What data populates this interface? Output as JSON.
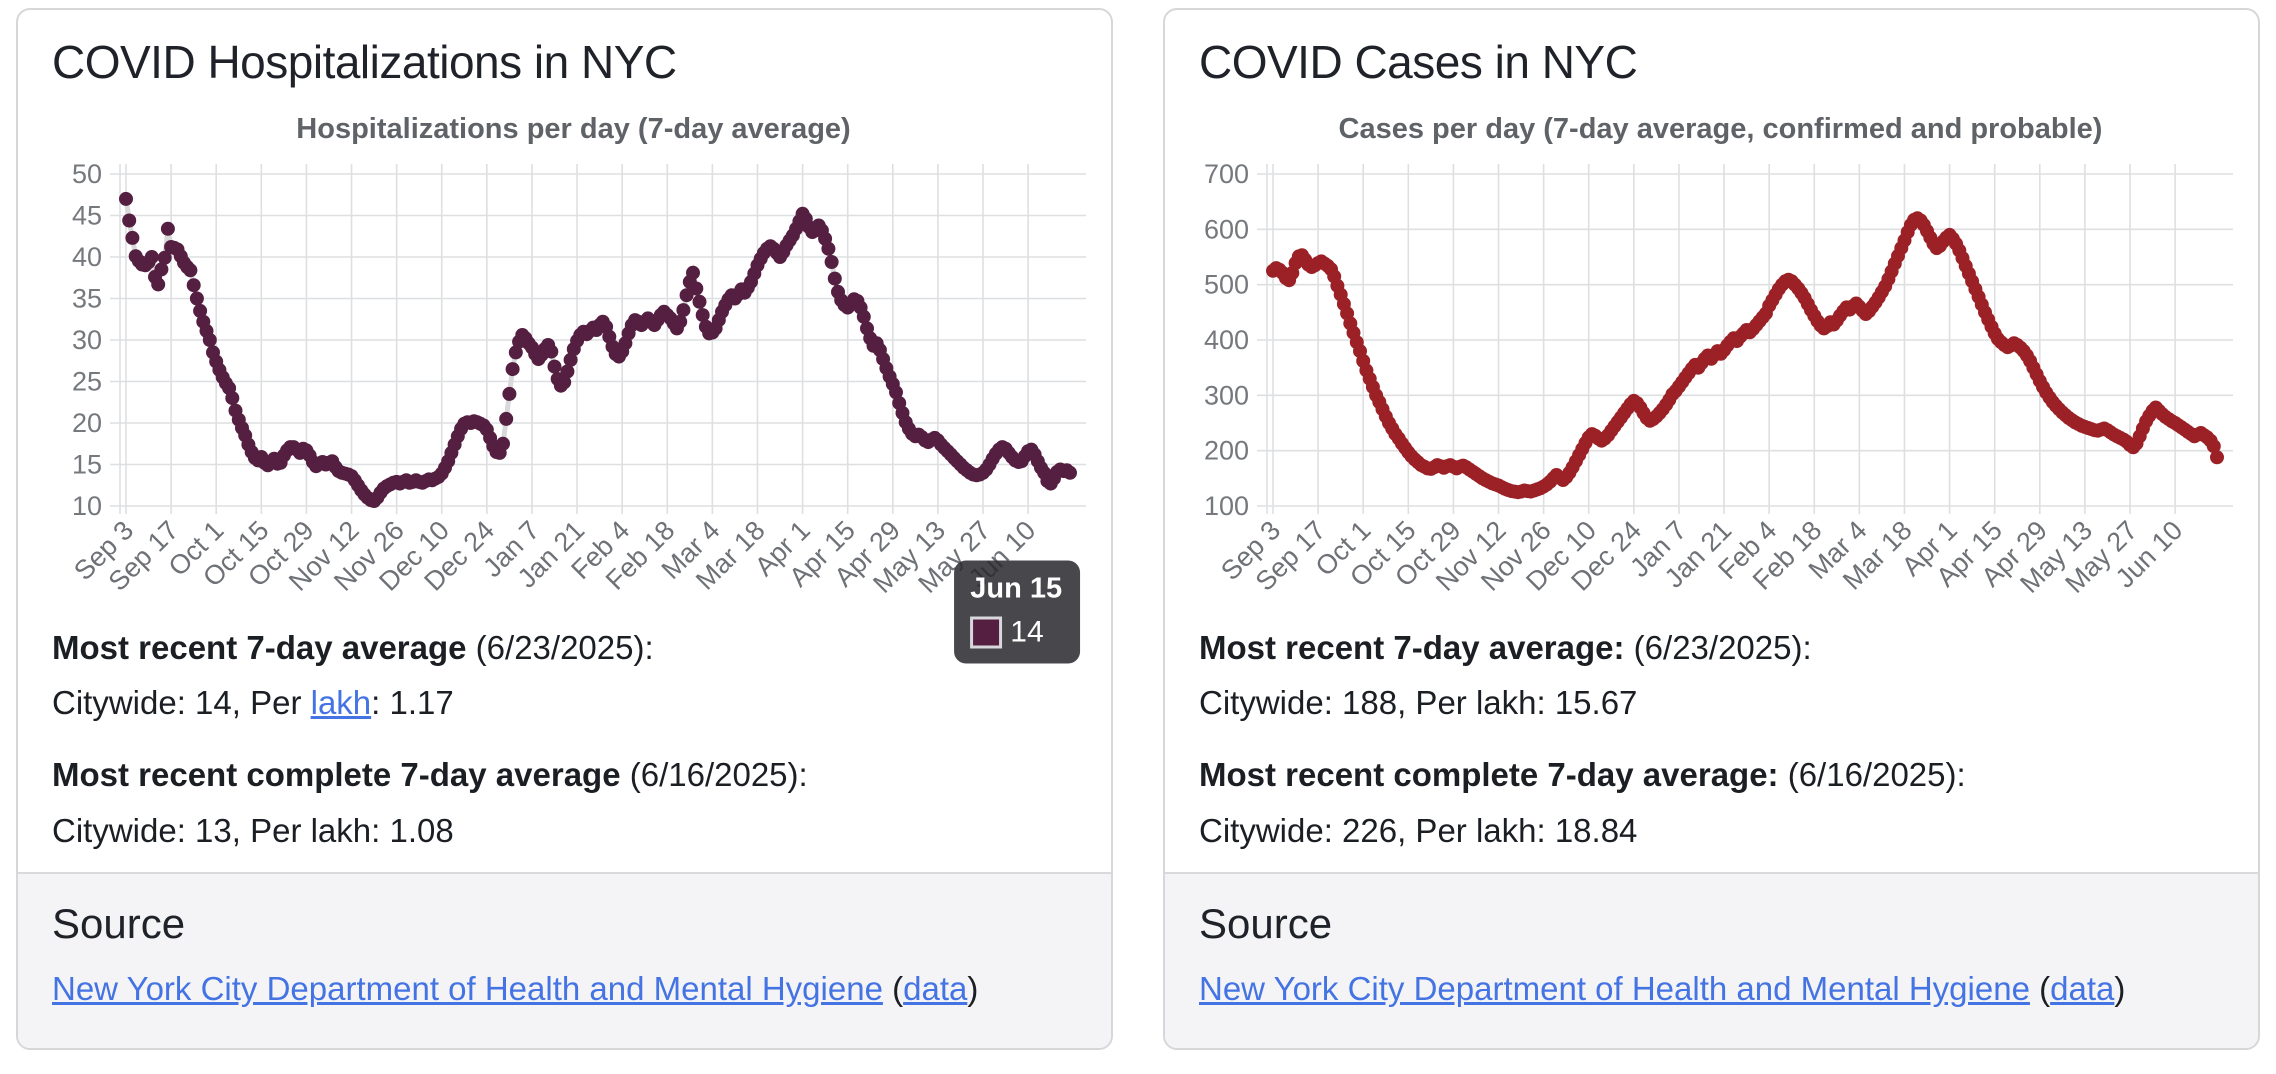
{
  "cards": [
    {
      "title": "COVID Hospitalizations in NYC",
      "chart_index": 0,
      "stat1": {
        "bold": "Most recent 7-day average",
        "rest": " (6/23/2025):",
        "pre": "Citywide: 14, Per ",
        "link": "lakh",
        "post": ": 1.17"
      },
      "stat2": {
        "bold": "Most recent complete 7-day average",
        "rest": " (6/16/2025):",
        "pre": "Citywide: 13, Per lakh: 1.08",
        "link": "",
        "post": ""
      },
      "source": {
        "heading": "Source",
        "link_text": "New York City Department of Health and Mental Hygiene",
        "sep": " (",
        "data_text": "data",
        "close": ")"
      }
    },
    {
      "title": "COVID Cases in NYC",
      "chart_index": 1,
      "stat1": {
        "bold": "Most recent 7-day average:",
        "rest": " (6/23/2025):",
        "pre": "Citywide: 188, Per lakh: 15.67",
        "link": "",
        "post": ""
      },
      "stat2": {
        "bold": "Most recent complete 7-day average:",
        "rest": " (6/16/2025):",
        "pre": "Citywide: 226, Per lakh: 18.84",
        "link": "",
        "post": ""
      },
      "source": {
        "heading": "Source",
        "link_text": "New York City Department of Health and Mental Hygiene",
        "sep": " (",
        "data_text": "data",
        "close": ")"
      }
    }
  ],
  "chart_data": [
    {
      "type": "scatter",
      "title": "Hospitalizations per day (7-day average)",
      "x_tick_days": [
        0,
        14,
        28,
        42,
        56,
        70,
        84,
        98,
        112,
        126,
        140,
        154,
        168,
        182,
        196,
        210,
        224,
        238,
        252,
        266,
        280
      ],
      "x_tick_labels": [
        "Sep 3",
        "Sep 17",
        "Oct 1",
        "Oct 15",
        "Oct 29",
        "Nov 12",
        "Nov 26",
        "Dec 10",
        "Dec 24",
        "Jan 7",
        "Jan 21",
        "Feb 4",
        "Feb 18",
        "Mar 4",
        "Mar 18",
        "Apr 1",
        "Apr 15",
        "Apr 29",
        "May 13",
        "May 27",
        "Jun 10"
      ],
      "yticks": [
        10,
        15,
        20,
        25,
        30,
        35,
        40,
        45,
        50
      ],
      "ylim": [
        10,
        50
      ],
      "grid": true,
      "legend": "none",
      "point_color": "#541f41",
      "line_color": "#d9d9db",
      "tooltip": {
        "day": 285,
        "value": 14,
        "label": "Jun 15",
        "value_label": "14"
      },
      "values": [
        47,
        44.4,
        42.3,
        40.1,
        39.5,
        39.1,
        39,
        39.4,
        40,
        37.6,
        36.7,
        38.5,
        39.9,
        43.4,
        41.2,
        41.1,
        40.9,
        40.1,
        39.3,
        38.8,
        38.4,
        36.6,
        35,
        33.5,
        32.2,
        31.1,
        30,
        28.5,
        27.4,
        26.4,
        25.5,
        24.8,
        24.2,
        23,
        21.5,
        20.4,
        19.4,
        18.5,
        17.4,
        16.5,
        15.8,
        15.5,
        15.9,
        15.2,
        14.9,
        15.3,
        15.7,
        15.1,
        15.2,
        16.1,
        16.7,
        17.1,
        17.1,
        16.8,
        16.4,
        16.9,
        16.7,
        16.1,
        15.3,
        14.8,
        15.1,
        15.3,
        15,
        15.2,
        15.4,
        14.7,
        14.2,
        14,
        13.9,
        13.8,
        13.6,
        13.1,
        12.5,
        11.9,
        11.4,
        11,
        10.7,
        10.6,
        11,
        11.6,
        12.1,
        12.4,
        12.6,
        12.8,
        12.9,
        12.7,
        12.9,
        13.1,
        12.8,
        12.9,
        13.1,
        12.9,
        12.8,
        13,
        13.2,
        13.1,
        13.3,
        13.5,
        13.9,
        14.6,
        15.4,
        16.4,
        17.4,
        18.4,
        19.3,
        19.9,
        20.1,
        20,
        20.2,
        20.1,
        19.9,
        19.7,
        19.2,
        18.2,
        17.2,
        16.5,
        16.4,
        17.5,
        20.5,
        23.5,
        26.5,
        28.5,
        29.8,
        30.6,
        30.2,
        29.6,
        29.1,
        28.3,
        27.7,
        28.2,
        28.9,
        29.4,
        28.6,
        26.8,
        25.3,
        24.5,
        24.9,
        26.2,
        27.6,
        28.9,
        29.9,
        30.6,
        31,
        30.7,
        31.1,
        31.5,
        31.2,
        31.8,
        32.2,
        31.6,
        30.4,
        29.2,
        28.3,
        28,
        28.6,
        29.6,
        30.8,
        31.8,
        32.4,
        32.2,
        31.8,
        32.2,
        32.6,
        32.2,
        31.8,
        32.4,
        33,
        33.4,
        33,
        32.6,
        32,
        31.4,
        32.2,
        33.6,
        35.4,
        37,
        38.1,
        36.2,
        34.6,
        33,
        31.6,
        30.8,
        30.9,
        31.4,
        32.4,
        33.4,
        34.2,
        34.9,
        35.4,
        35,
        35.5,
        36.1,
        35.7,
        36.3,
        37,
        38,
        39,
        39.8,
        40.5,
        41,
        41.3,
        41,
        40.5,
        40,
        40.6,
        41.4,
        42,
        42.6,
        43.4,
        44.3,
        45.2,
        44.6,
        43.6,
        43,
        43.2,
        43.8,
        43.2,
        42.2,
        41,
        39.4,
        37.4,
        35.8,
        34.8,
        34.2,
        33.9,
        34.3,
        34.9,
        34.7,
        33.9,
        32.8,
        31.4,
        30.2,
        29.3,
        29.6,
        28.8,
        27.7,
        26.6,
        25.6,
        24.7,
        23.7,
        22.4,
        21.2,
        20.1,
        19.3,
        18.7,
        18.4,
        18.6,
        18.3,
        17.9,
        17.7,
        18,
        18.2,
        17.9,
        17.4,
        17,
        16.6,
        16.2,
        15.8,
        15.4,
        15,
        14.6,
        14.3,
        14,
        13.8,
        13.7,
        13.8,
        14,
        14.4,
        15,
        15.7,
        16.3,
        16.8,
        17.1,
        16.9,
        16.4,
        15.9,
        15.5,
        15.3,
        15.4,
        16,
        16.6,
        16.8,
        16.2,
        15.4,
        14.6,
        14,
        13,
        12.7,
        13.3,
        14.1,
        14.4,
        14.2,
        14.3,
        14
      ]
    },
    {
      "type": "scatter",
      "title": "Cases per day (7-day average, confirmed and probable)",
      "x_tick_days": [
        0,
        14,
        28,
        42,
        56,
        70,
        84,
        98,
        112,
        126,
        140,
        154,
        168,
        182,
        196,
        210,
        224,
        238,
        252,
        266,
        280
      ],
      "x_tick_labels": [
        "Sep 3",
        "Sep 17",
        "Oct 1",
        "Oct 15",
        "Oct 29",
        "Nov 12",
        "Nov 26",
        "Dec 10",
        "Dec 24",
        "Jan 7",
        "Jan 21",
        "Feb 4",
        "Feb 18",
        "Mar 4",
        "Mar 18",
        "Apr 1",
        "Apr 15",
        "Apr 29",
        "May 13",
        "May 27",
        "Jun 10"
      ],
      "yticks": [
        100,
        200,
        300,
        400,
        500,
        600,
        700
      ],
      "ylim": [
        100,
        700
      ],
      "grid": true,
      "legend": "none",
      "point_color": "#9b2126",
      "line_color": "#d9d9db",
      "tooltip": null,
      "values": [
        525,
        530,
        527,
        521,
        512,
        508,
        521,
        539,
        551,
        553,
        545,
        536,
        532,
        535,
        539,
        542,
        538,
        534,
        528,
        515,
        498,
        482,
        465,
        448,
        430,
        413,
        396,
        380,
        362,
        345,
        330,
        315,
        300,
        288,
        275,
        262,
        250,
        240,
        230,
        222,
        213,
        205,
        197,
        190,
        184,
        179,
        174,
        171,
        168,
        167,
        170,
        174,
        172,
        169,
        172,
        174,
        171,
        168,
        171,
        173,
        170,
        166,
        162,
        158,
        154,
        150,
        147,
        144,
        141,
        139,
        137,
        134,
        131,
        129,
        127,
        126,
        125,
        126,
        128,
        127,
        126,
        128,
        130,
        132,
        135,
        139,
        144,
        150,
        156,
        151,
        147,
        152,
        160,
        170,
        181,
        192,
        203,
        214,
        224,
        230,
        227,
        222,
        218,
        222,
        228,
        236,
        244,
        252,
        260,
        268,
        276,
        284,
        290,
        286,
        278,
        268,
        259,
        254,
        257,
        262,
        268,
        275,
        283,
        292,
        302,
        308,
        316,
        324,
        332,
        340,
        348,
        355,
        350,
        358,
        366,
        372,
        366,
        373,
        380,
        375,
        382,
        390,
        397,
        403,
        398,
        406,
        412,
        418,
        414,
        420,
        427,
        434,
        441,
        448,
        462,
        472,
        482,
        492,
        500,
        506,
        509,
        506,
        500,
        493,
        485,
        476,
        465,
        454,
        444,
        434,
        426,
        421,
        425,
        432,
        428,
        435,
        444,
        452,
        459,
        455,
        461,
        466,
        460,
        453,
        447,
        452,
        460,
        468,
        477,
        487,
        497,
        510,
        524,
        538,
        552,
        566,
        580,
        595,
        608,
        617,
        620,
        616,
        608,
        597,
        585,
        574,
        566,
        570,
        578,
        585,
        590,
        583,
        574,
        562,
        548,
        534,
        520,
        506,
        492,
        478,
        464,
        450,
        437,
        424,
        412,
        402,
        396,
        391,
        387,
        390,
        394,
        391,
        386,
        380,
        372,
        362,
        350,
        338,
        326,
        315,
        305,
        296,
        288,
        281,
        275,
        269,
        264,
        259,
        255,
        251,
        248,
        245,
        243,
        241,
        239,
        237,
        236,
        238,
        240,
        237,
        233,
        229,
        226,
        223,
        220,
        216,
        210,
        206,
        213,
        226,
        240,
        253,
        263,
        272,
        278,
        272,
        266,
        261,
        257,
        253,
        250,
        246,
        242,
        238,
        234,
        230,
        226,
        229,
        232,
        228,
        224,
        218,
        208,
        188
      ]
    }
  ]
}
